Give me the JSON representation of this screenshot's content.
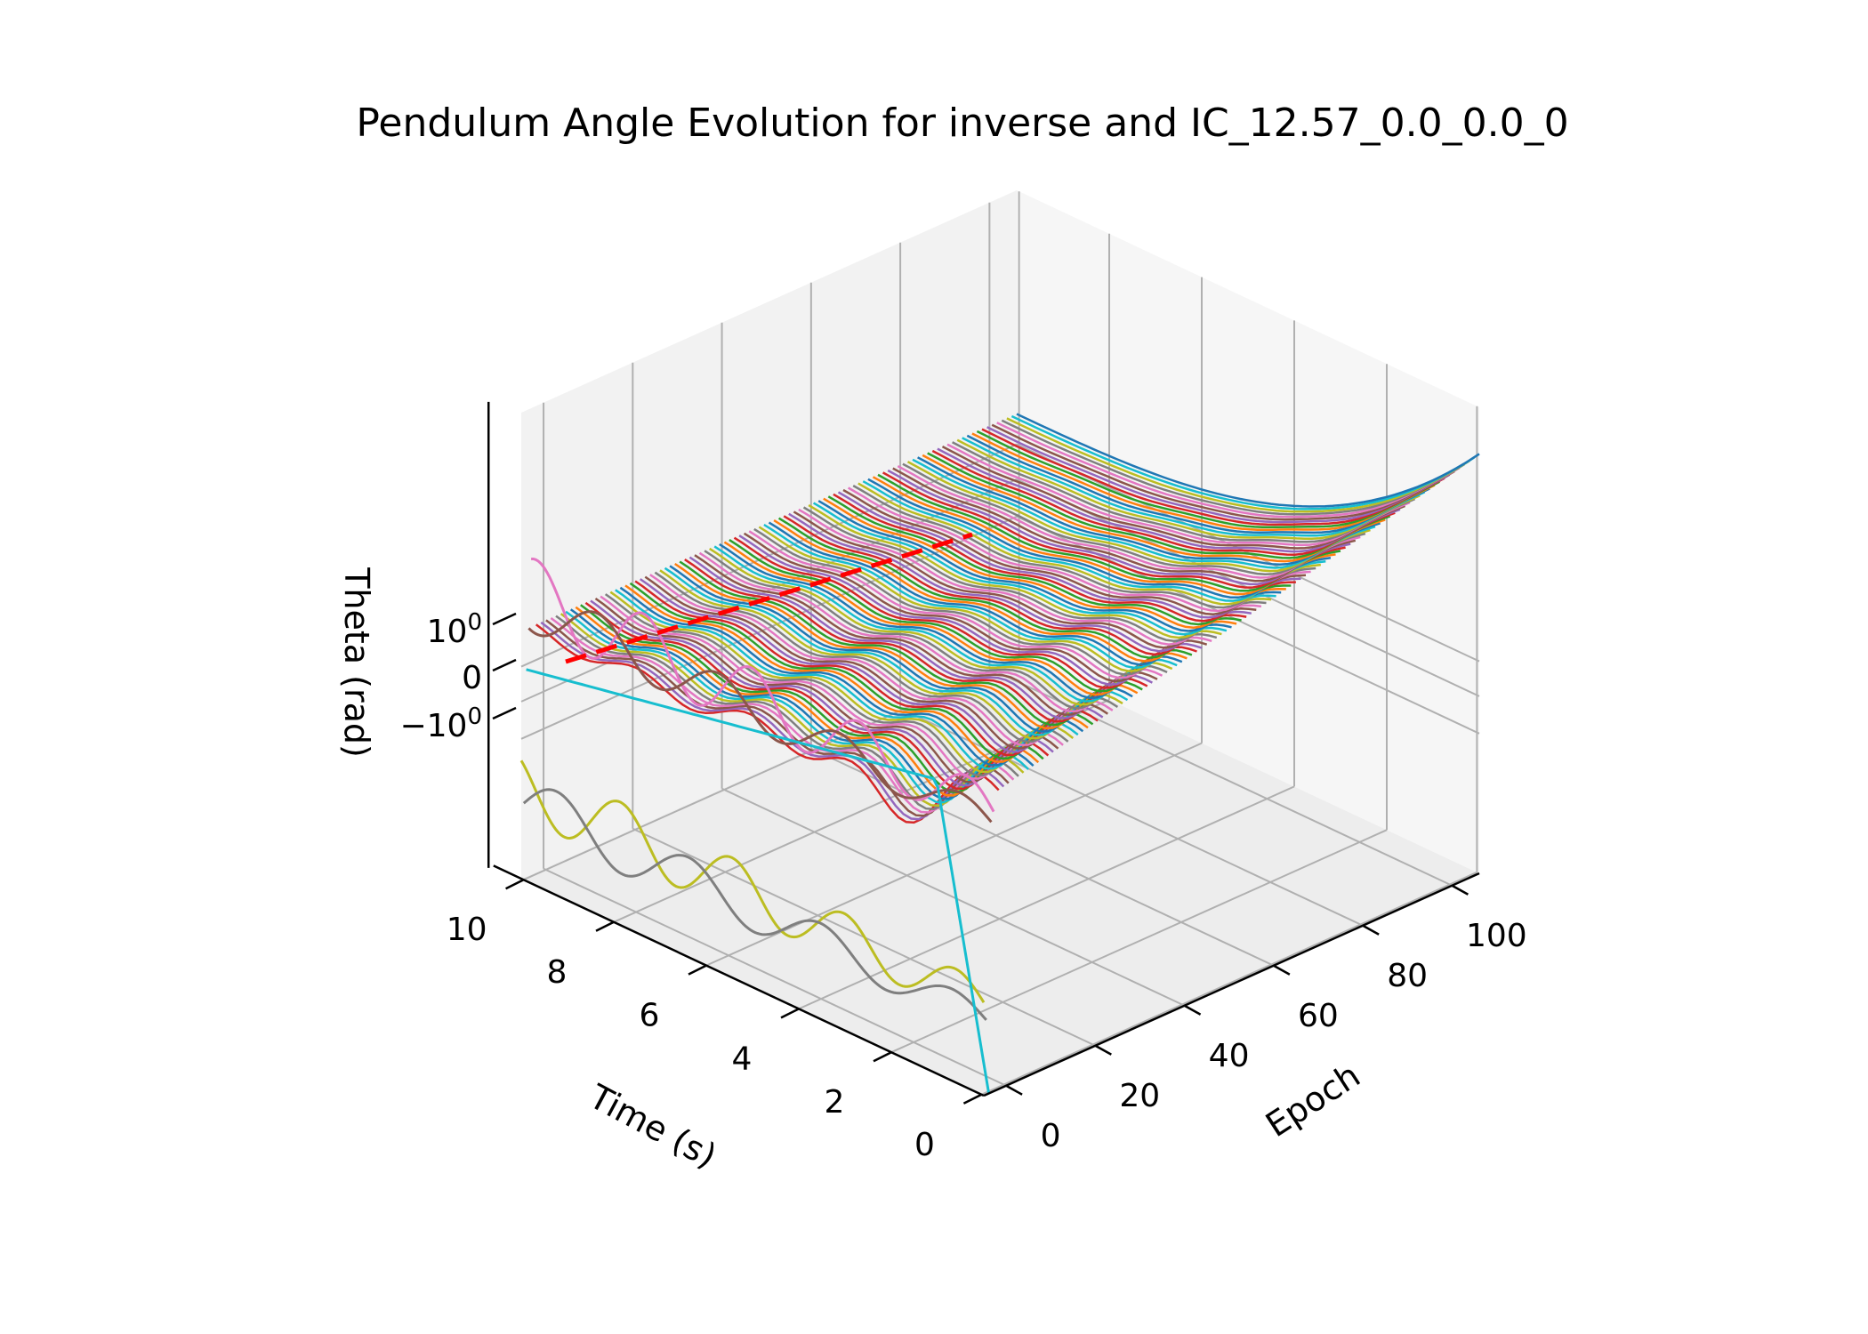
{
  "chart_data": {
    "type": "line-3d",
    "title": "Pendulum Angle Evolution for inverse and IC_12.57_0.0_0.0_0",
    "xlabel": "Time (s)",
    "ylabel": "Epoch",
    "zlabel": "Theta (rad)",
    "x_ticks": [
      "0",
      "2",
      "4",
      "6",
      "8",
      "10"
    ],
    "x_tick_values": [
      0,
      2,
      4,
      6,
      8,
      10
    ],
    "y_ticks": [
      "0",
      "20",
      "40",
      "60",
      "80",
      "100"
    ],
    "y_tick_values": [
      0,
      20,
      40,
      60,
      80,
      100
    ],
    "z_scale": "symlog",
    "z_tick_labels": [
      {
        "base": "10",
        "exp": "0",
        "sign": "",
        "value": 1
      },
      {
        "base": "0",
        "exp": "",
        "sign": "",
        "value": 0
      },
      {
        "base": "10",
        "exp": "0",
        "sign": "−",
        "value": -1
      }
    ],
    "xlim": [
      0,
      10
    ],
    "ylim": [
      0,
      100
    ],
    "grid": true,
    "legend": "none",
    "reference_line": {
      "style": "dashed",
      "color": "#ff0000",
      "epoch_range": [
        0,
        100
      ],
      "time": 0
    },
    "series_colors": [
      "#1f77b4",
      "#ff7f0e",
      "#2ca02c",
      "#d62728",
      "#9467bd",
      "#8c564b",
      "#e377c2",
      "#7f7f7f",
      "#bcbd22",
      "#17becf"
    ],
    "num_epochs": 100,
    "time_range": [
      0,
      10
    ]
  }
}
